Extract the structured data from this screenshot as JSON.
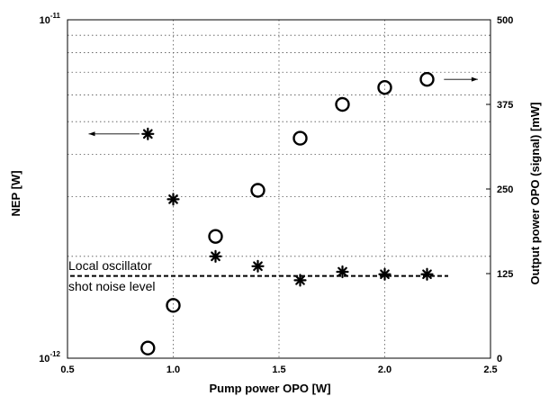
{
  "chart_data": {
    "type": "scatter",
    "xlabel": "Pump power OPO [W]",
    "ylabel_left": "NEP [W]",
    "ylabel_right": "Output power OPO (signal) [mW]",
    "xlim": [
      0.5,
      2.5
    ],
    "x_ticks": [
      "0.5",
      "1.0",
      "1.5",
      "2.0",
      "2.5"
    ],
    "ylim_left": [
      1e-12,
      1e-11
    ],
    "ylim_left_scale": "log",
    "y_left_ticks": [
      {
        "value": 1e-11,
        "base": "10",
        "exp": "-11"
      },
      {
        "value": 1e-12,
        "base": "10",
        "exp": "-12"
      }
    ],
    "ylim_right": [
      0,
      500
    ],
    "y_right_ticks": [
      "0",
      "125",
      "250",
      "375",
      "500"
    ],
    "grid": true,
    "series": [
      {
        "marker": "asterisk",
        "axis": "left",
        "x": [
          0.88,
          1.0,
          1.2,
          1.4,
          1.6,
          1.8,
          2.0,
          2.2
        ],
        "y": [
          4.6e-12,
          2.95e-12,
          2e-12,
          1.87e-12,
          1.7e-12,
          1.8e-12,
          1.77e-12,
          1.77e-12
        ]
      },
      {
        "marker": "circle",
        "axis": "right",
        "x": [
          0.88,
          1.0,
          1.2,
          1.4,
          1.6,
          1.8,
          2.0,
          2.2
        ],
        "y": [
          15,
          78,
          180,
          248,
          325,
          375,
          400,
          412
        ]
      }
    ],
    "reference_line": {
      "axis": "left",
      "value": 1.75e-12,
      "x_range": [
        0.5,
        2.3
      ],
      "label_lines": [
        "Local oscillator",
        "shot noise level"
      ]
    },
    "arrows": [
      {
        "points_to": "left-axis",
        "x_range": [
          0.6,
          0.84
        ],
        "y_left": 4.6e-12
      },
      {
        "points_to": "right-axis",
        "x_range": [
          2.28,
          2.44
        ],
        "y_right": 412
      }
    ]
  }
}
